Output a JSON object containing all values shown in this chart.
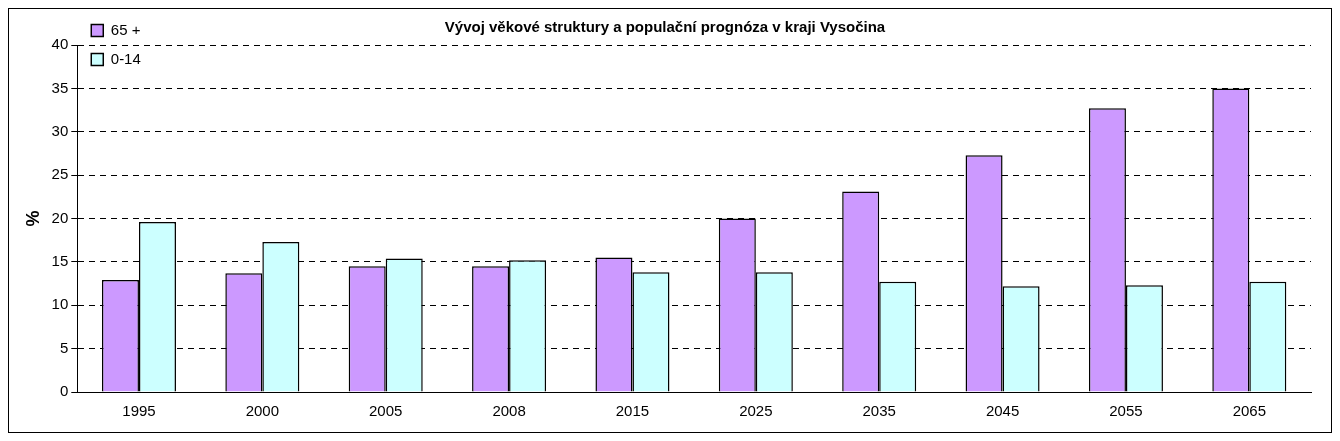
{
  "chart_data": {
    "type": "bar",
    "title": "Vývoj věkové struktury a populační prognóza v kraji Vysočina",
    "ylabel": "%",
    "categories": [
      "1995",
      "2000",
      "2005",
      "2008",
      "2015",
      "2025",
      "2035",
      "2045",
      "2055",
      "2065"
    ],
    "series": [
      {
        "name": "65 +",
        "color": "#cc99ff",
        "values": [
          12.9,
          13.7,
          14.5,
          14.5,
          15.5,
          20.0,
          23.1,
          27.3,
          32.7,
          35.0
        ]
      },
      {
        "name": "0-14",
        "color": "#ccffff",
        "values": [
          19.6,
          17.3,
          15.4,
          15.2,
          13.8,
          13.8,
          12.7,
          12.2,
          12.3,
          12.7
        ]
      }
    ],
    "ylim": [
      0,
      40
    ],
    "yticks": [
      0,
      5,
      10,
      15,
      20,
      25,
      30,
      35,
      40
    ],
    "grid": "y",
    "legend": "top left"
  }
}
